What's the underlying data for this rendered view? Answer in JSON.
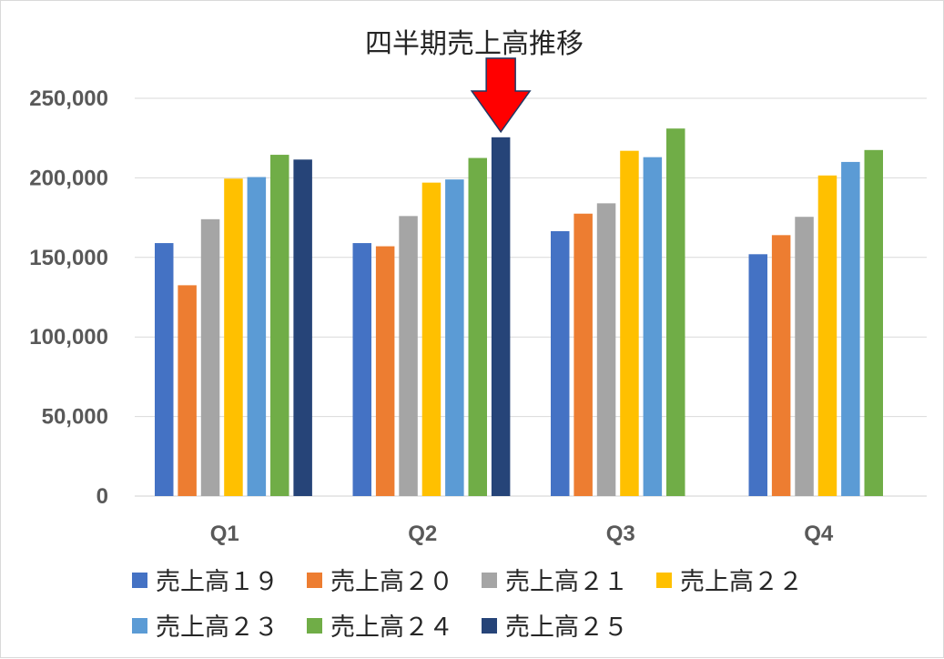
{
  "chart_data": {
    "type": "bar",
    "title": "四半期売上高推移",
    "categories": [
      "Q1",
      "Q2",
      "Q3",
      "Q4"
    ],
    "ylim": [
      0,
      250000
    ],
    "yticks": [
      0,
      50000,
      100000,
      150000,
      200000,
      250000
    ],
    "ytick_labels": [
      "0",
      "50,000",
      "100,000",
      "150,000",
      "200,000",
      "250,000"
    ],
    "grid": true,
    "legend_position": "bottom",
    "series": [
      {
        "name": "売上高１９",
        "color": "#4472C4",
        "values": [
          159000,
          159000,
          166500,
          152000
        ]
      },
      {
        "name": "売上高２０",
        "color": "#ED7D31",
        "values": [
          132500,
          157000,
          177500,
          164000
        ]
      },
      {
        "name": "売上高２１",
        "color": "#A5A5A5",
        "values": [
          174000,
          176000,
          184000,
          175500
        ]
      },
      {
        "name": "売上高２２",
        "color": "#FFC000",
        "values": [
          199500,
          197000,
          217000,
          201500
        ]
      },
      {
        "name": "売上高２３",
        "color": "#5B9BD5",
        "values": [
          200500,
          199000,
          213000,
          210000
        ]
      },
      {
        "name": "売上高２４",
        "color": "#70AD47",
        "values": [
          214500,
          212500,
          231000,
          217500
        ]
      },
      {
        "name": "売上高２５",
        "color": "#264478",
        "values": [
          211500,
          225500,
          null,
          null
        ]
      }
    ],
    "annotation": {
      "type": "arrow",
      "color": "#FF0000",
      "outline": "#1F3864",
      "category": "Q2",
      "series": "売上高２５"
    }
  }
}
